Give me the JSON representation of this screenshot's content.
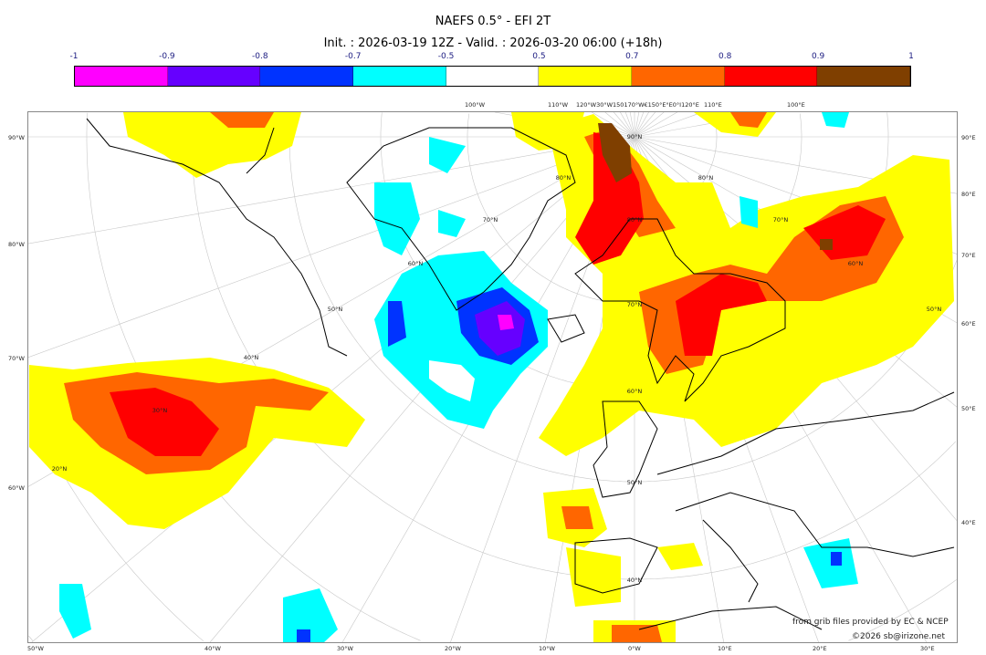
{
  "title": "NAEFS 0.5° - EFI 2T",
  "subtitle": "Init. : 2026-03-19 12Z - Valid. : 2026-03-20 06:00 (+18h)",
  "colorbar": {
    "ticks": [
      "-1",
      "-0.9",
      "-0.8",
      "-0.7",
      "-0.5",
      "0.5",
      "0.7",
      "0.8",
      "0.9",
      "1"
    ],
    "colors": [
      "#ff00ff",
      "#6600ff",
      "#0033ff",
      "#00ffff",
      "#ffffff",
      "#ffff00",
      "#ff6600",
      "#ff0000",
      "#7f3f00"
    ]
  },
  "map": {
    "left_labels": [
      "90°W",
      "80°W",
      "70°W",
      "60°W"
    ],
    "right_labels": [
      "90°E",
      "80°E",
      "70°E",
      "60°E",
      "50°E",
      "40°E"
    ],
    "bottom_labels": [
      "50°W",
      "40°W",
      "30°W",
      "20°W",
      "10°W",
      "0°W",
      "10°E",
      "20°E",
      "30°E"
    ],
    "top_labels": [
      "100°W",
      "110°W",
      "120°W30°W150170°W€150°E°E0°I120°E",
      "110°E",
      "100°E"
    ],
    "lat_labels_center": [
      "90°N",
      "80°N",
      "70°N",
      "60°N",
      "50°N",
      "40°N"
    ],
    "lat_labels_left": [
      "80°N",
      "70°N",
      "60°N",
      "50°N",
      "40°N",
      "30°N",
      "20°N"
    ],
    "lat_labels_right": [
      "80°N",
      "70°N",
      "60°N",
      "50°N"
    ]
  },
  "credits": {
    "source": "from grib files provided by EC & NCEP",
    "copyright": "©2026 sb@irizone.net"
  }
}
